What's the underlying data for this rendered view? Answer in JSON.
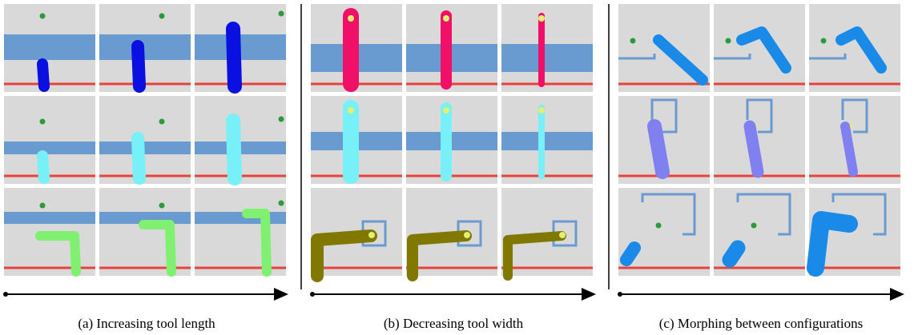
{
  "captions": [
    "(a) Increasing tool length",
    "(b) Decreasing tool width",
    "(c) Morphing between configurations"
  ]
}
